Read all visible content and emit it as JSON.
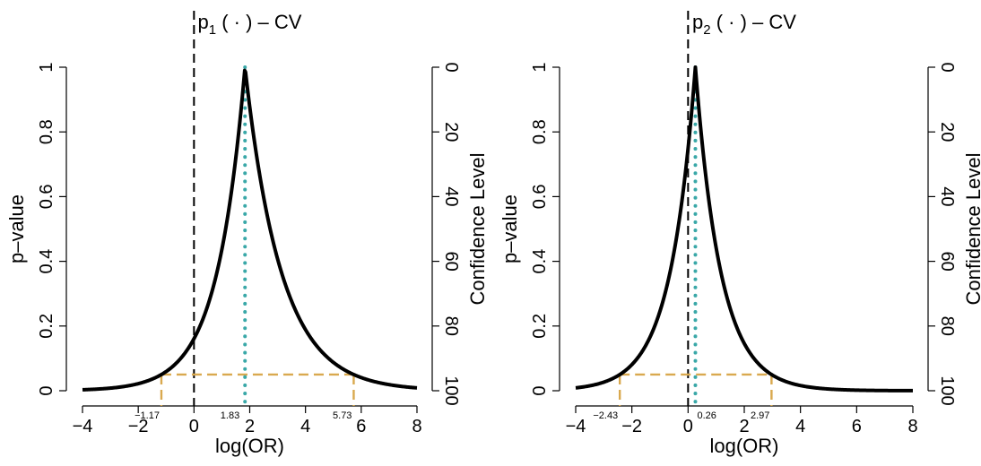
{
  "chart_data": [
    {
      "type": "line",
      "title": "p1(·) – CV",
      "title_parts": {
        "base": "p",
        "sub": "1",
        "rest": "( · ) – CV"
      },
      "xlabel": "log(OR)",
      "ylabel": "p–value",
      "ylabel_right": "Confidence Level",
      "xlim": [
        -4,
        8
      ],
      "ylim": [
        0,
        1
      ],
      "x_ticks": [
        -4,
        -2,
        0,
        2,
        4,
        6,
        8
      ],
      "x_tick_labels": [
        "−4",
        "−2",
        "0",
        "2",
        "4",
        "6",
        "8"
      ],
      "y_ticks": [
        0,
        0.2,
        0.4,
        0.6,
        0.8,
        1
      ],
      "y_tick_labels": [
        "0",
        "0.2",
        "0.4",
        "0.6",
        "0.8",
        "1"
      ],
      "right_ticks": [
        0,
        20,
        40,
        60,
        80,
        100
      ],
      "right_tick_labels": [
        "0",
        "20",
        "40",
        "60",
        "80",
        "100"
      ],
      "estimate": 1.83,
      "ci": {
        "lower": -1.17,
        "upper": 5.73,
        "p_level": 0.05
      },
      "labels": {
        "lower": "−1.17",
        "estimate": "1.83",
        "upper": "5.73"
      },
      "colors": {
        "curve": "#000000",
        "estimate": "#3aa8a8",
        "ci": "#d9a94f",
        "null": "#000000"
      }
    },
    {
      "type": "line",
      "title": "p2(·) – CV",
      "title_parts": {
        "base": "p",
        "sub": "2",
        "rest": "( · ) – CV"
      },
      "xlabel": "log(OR)",
      "ylabel": "p–value",
      "ylabel_right": "Confidence Level",
      "xlim": [
        -4,
        8
      ],
      "ylim": [
        0,
        1
      ],
      "x_ticks": [
        -4,
        -2,
        0,
        2,
        4,
        6,
        8
      ],
      "x_tick_labels": [
        "−4",
        "−2",
        "0",
        "2",
        "4",
        "6",
        "8"
      ],
      "y_ticks": [
        0,
        0.2,
        0.4,
        0.6,
        0.8,
        1
      ],
      "y_tick_labels": [
        "0",
        "0.2",
        "0.4",
        "0.6",
        "0.8",
        "1"
      ],
      "right_ticks": [
        0,
        20,
        40,
        60,
        80,
        100
      ],
      "right_tick_labels": [
        "0",
        "20",
        "40",
        "60",
        "80",
        "100"
      ],
      "estimate": 0.26,
      "ci": {
        "lower": -2.43,
        "upper": 2.97,
        "p_level": 0.05
      },
      "labels": {
        "lower": "−2.43",
        "estimate": "0.26",
        "upper": "2.97"
      },
      "colors": {
        "curve": "#000000",
        "estimate": "#3aa8a8",
        "ci": "#d9a94f",
        "null": "#000000"
      }
    }
  ]
}
